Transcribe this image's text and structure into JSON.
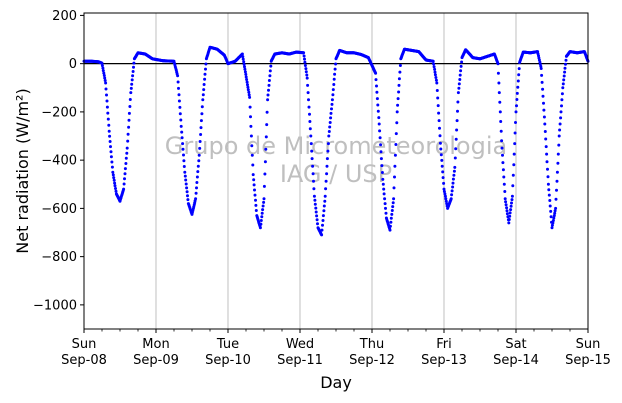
{
  "chart_data": {
    "type": "scatter",
    "title": "",
    "xlabel": "Day",
    "ylabel": "Net radiation (W/m²)",
    "ylim": [
      -1100,
      210
    ],
    "xlim_days": [
      0,
      7
    ],
    "y_ticks": [
      200,
      0,
      -200,
      -400,
      -600,
      -800,
      -1000
    ],
    "y_tick_labels": [
      "200",
      "0",
      "−200",
      "−400",
      "−600",
      "−800",
      "−1000"
    ],
    "x_ticks": [
      {
        "day": "Sun",
        "date": "Sep-08"
      },
      {
        "day": "Mon",
        "date": "Sep-09"
      },
      {
        "day": "Tue",
        "date": "Sep-10"
      },
      {
        "day": "Wed",
        "date": "Sep-11"
      },
      {
        "day": "Thu",
        "date": "Sep-12"
      },
      {
        "day": "Fri",
        "date": "Sep-13"
      },
      {
        "day": "Sat",
        "date": "Sep-14"
      },
      {
        "day": "Sun",
        "date": "Sep-15"
      }
    ],
    "grid": "vertical",
    "zero_line": true,
    "marker_color": "#0000ff",
    "watermark": [
      "Grupo de Micrometeorologia",
      "IAG / USP"
    ],
    "series": [
      {
        "values": [
          [
            0.0,
            10
          ],
          [
            0.1,
            10
          ],
          [
            0.2,
            8
          ],
          [
            0.25,
            2
          ],
          [
            0.3,
            -80
          ],
          [
            0.35,
            -280
          ],
          [
            0.4,
            -450
          ],
          [
            0.45,
            -540
          ],
          [
            0.5,
            -570
          ],
          [
            0.55,
            -520
          ],
          [
            0.6,
            -350
          ],
          [
            0.65,
            -120
          ],
          [
            0.7,
            20
          ],
          [
            0.75,
            45
          ],
          [
            0.85,
            40
          ],
          [
            0.95,
            20
          ],
          [
            1.1,
            12
          ],
          [
            1.25,
            10
          ],
          [
            1.3,
            -50
          ],
          [
            1.35,
            -260
          ],
          [
            1.4,
            -450
          ],
          [
            1.45,
            -580
          ],
          [
            1.5,
            -625
          ],
          [
            1.55,
            -560
          ],
          [
            1.6,
            -380
          ],
          [
            1.65,
            -150
          ],
          [
            1.7,
            20
          ],
          [
            1.75,
            68
          ],
          [
            1.85,
            60
          ],
          [
            1.95,
            35
          ],
          [
            2.0,
            0
          ],
          [
            2.1,
            10
          ],
          [
            2.2,
            40
          ],
          [
            2.3,
            -140
          ],
          [
            2.35,
            -460
          ],
          [
            2.4,
            -630
          ],
          [
            2.45,
            -680
          ],
          [
            2.5,
            -560
          ],
          [
            2.55,
            -150
          ],
          [
            2.6,
            10
          ],
          [
            2.65,
            40
          ],
          [
            2.75,
            45
          ],
          [
            2.85,
            40
          ],
          [
            2.95,
            48
          ],
          [
            3.05,
            45
          ],
          [
            3.1,
            -60
          ],
          [
            3.15,
            -300
          ],
          [
            3.2,
            -550
          ],
          [
            3.25,
            -680
          ],
          [
            3.3,
            -710
          ],
          [
            3.35,
            -550
          ],
          [
            3.4,
            -300
          ],
          [
            3.45,
            -150
          ],
          [
            3.5,
            20
          ],
          [
            3.55,
            55
          ],
          [
            3.65,
            45
          ],
          [
            3.75,
            45
          ],
          [
            3.85,
            38
          ],
          [
            3.95,
            25
          ],
          [
            4.05,
            -40
          ],
          [
            4.1,
            -250
          ],
          [
            4.15,
            -480
          ],
          [
            4.2,
            -640
          ],
          [
            4.25,
            -690
          ],
          [
            4.3,
            -560
          ],
          [
            4.35,
            -200
          ],
          [
            4.4,
            20
          ],
          [
            4.45,
            60
          ],
          [
            4.55,
            55
          ],
          [
            4.65,
            50
          ],
          [
            4.75,
            15
          ],
          [
            4.85,
            10
          ],
          [
            4.9,
            -80
          ],
          [
            4.95,
            -330
          ],
          [
            5.0,
            -520
          ],
          [
            5.05,
            -600
          ],
          [
            5.1,
            -560
          ],
          [
            5.15,
            -430
          ],
          [
            5.2,
            -120
          ],
          [
            5.25,
            25
          ],
          [
            5.3,
            58
          ],
          [
            5.4,
            25
          ],
          [
            5.5,
            20
          ],
          [
            5.6,
            30
          ],
          [
            5.7,
            40
          ],
          [
            5.75,
            0
          ],
          [
            5.8,
            -320
          ],
          [
            5.85,
            -560
          ],
          [
            5.9,
            -660
          ],
          [
            5.95,
            -550
          ],
          [
            6.0,
            -200
          ],
          [
            6.05,
            5
          ],
          [
            6.1,
            48
          ],
          [
            6.2,
            45
          ],
          [
            6.3,
            50
          ],
          [
            6.35,
            -20
          ],
          [
            6.4,
            -250
          ],
          [
            6.45,
            -500
          ],
          [
            6.5,
            -680
          ],
          [
            6.55,
            -600
          ],
          [
            6.6,
            -300
          ],
          [
            6.65,
            -100
          ],
          [
            6.7,
            30
          ],
          [
            6.75,
            50
          ],
          [
            6.85,
            45
          ],
          [
            6.95,
            50
          ],
          [
            7.0,
            10
          ]
        ]
      }
    ]
  }
}
